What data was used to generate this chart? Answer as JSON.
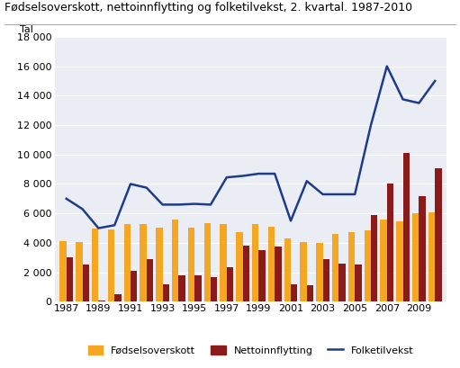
{
  "title": "Fødselsoverskott, nettoinnflytting og folketilvekst, 2. kvartal. 1987-2010",
  "tal_label": "Tal",
  "years": [
    1987,
    1988,
    1989,
    1990,
    1991,
    1992,
    1993,
    1994,
    1995,
    1996,
    1997,
    1998,
    1999,
    2000,
    2001,
    2002,
    2003,
    2004,
    2005,
    2006,
    2007,
    2008,
    2009,
    2010
  ],
  "fodselsoverskott": [
    4100,
    4050,
    5000,
    4900,
    5250,
    5250,
    5050,
    5600,
    5050,
    5350,
    5300,
    4750,
    5300,
    5100,
    4300,
    4050,
    4000,
    4600,
    4700,
    4850,
    5600,
    5450,
    6000,
    6100
  ],
  "nettoinnflytting": [
    3000,
    2550,
    100,
    500,
    2100,
    2900,
    1200,
    1800,
    1800,
    1700,
    2350,
    3800,
    3500,
    3750,
    1200,
    1100,
    2900,
    2600,
    2550,
    5900,
    8050,
    10100,
    7150,
    9100
  ],
  "folketilvekst": [
    7000,
    6300,
    5000,
    5200,
    8000,
    7750,
    6600,
    6600,
    6650,
    6600,
    8450,
    8550,
    8700,
    8700,
    5500,
    8200,
    7300,
    7300,
    7300,
    12000,
    16000,
    13750,
    13500,
    15000
  ],
  "bar_color_fodsels": "#F5A623",
  "bar_color_netto": "#8B1A1A",
  "line_color": "#1F3B8C",
  "plot_bg_color": "#EAEEF4",
  "fig_bg_color": "#FFFFFF",
  "grid_color": "#FFFFFF",
  "ylim": [
    0,
    18000
  ],
  "yticks": [
    0,
    2000,
    4000,
    6000,
    8000,
    10000,
    12000,
    14000,
    16000,
    18000
  ],
  "legend_fodsels": "Fødselsoverskott",
  "legend_netto": "Nettoinnflytting",
  "legend_linje": "Folketilvekst",
  "title_fontsize": 9,
  "tick_fontsize": 8,
  "legend_fontsize": 8
}
